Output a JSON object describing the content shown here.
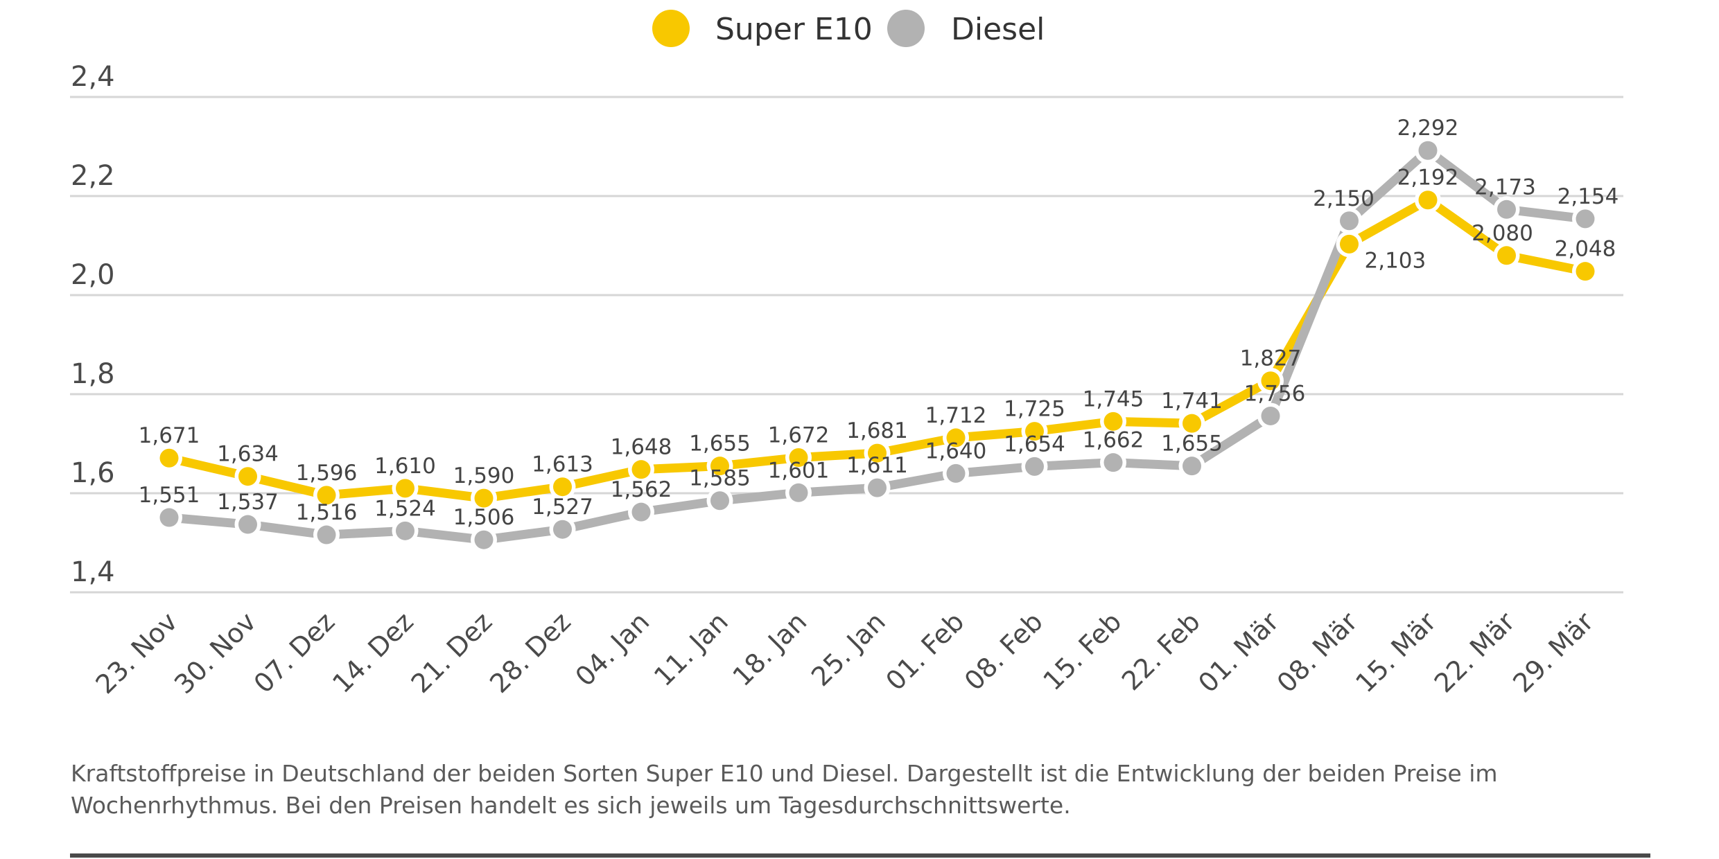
{
  "chart_data": {
    "type": "line",
    "title": "",
    "xlabel": "",
    "ylabel": "",
    "ylim": [
      1.4,
      2.4
    ],
    "yticks": [
      {
        "value": 1.4,
        "label": "1,4"
      },
      {
        "value": 1.6,
        "label": "1,6"
      },
      {
        "value": 1.8,
        "label": "1,8"
      },
      {
        "value": 2.0,
        "label": "2,0"
      },
      {
        "value": 2.2,
        "label": "2,2"
      },
      {
        "value": 2.4,
        "label": "2,4"
      }
    ],
    "grid": true,
    "legend_position": "top-center",
    "categories": [
      "23. Nov",
      "30. Nov",
      "07. Dez",
      "14. Dez",
      "21. Dez",
      "28. Dez",
      "04. Jan",
      "11. Jan",
      "18. Jan",
      "25. Jan",
      "01. Feb",
      "08. Feb",
      "15. Feb",
      "22. Feb",
      "01. Mär",
      "08. Mär",
      "15. Mär",
      "22. Mär",
      "29. Mär"
    ],
    "series": [
      {
        "name": "Super E10",
        "color": "#F8C800",
        "values": [
          1.671,
          1.634,
          1.596,
          1.61,
          1.59,
          1.613,
          1.648,
          1.655,
          1.672,
          1.681,
          1.712,
          1.725,
          1.745,
          1.741,
          1.827,
          2.103,
          2.192,
          2.08,
          2.048
        ],
        "labels": [
          "1,671",
          "1,634",
          "1,596",
          "1,610",
          "1,590",
          "1,613",
          "1,648",
          "1,655",
          "1,672",
          "1,681",
          "1,712",
          "1,725",
          "1,745",
          "1,741",
          "1,827",
          "2,103",
          "2,192",
          "2,080",
          "2,048"
        ]
      },
      {
        "name": "Diesel",
        "color": "#B2B2B2",
        "values": [
          1.551,
          1.537,
          1.516,
          1.524,
          1.506,
          1.527,
          1.562,
          1.585,
          1.601,
          1.611,
          1.64,
          1.654,
          1.662,
          1.655,
          1.756,
          2.15,
          2.292,
          2.173,
          2.154
        ],
        "labels": [
          "1,551",
          "1,537",
          "1,516",
          "1,524",
          "1,506",
          "1,527",
          "1,562",
          "1,585",
          "1,601",
          "1,611",
          "1,640",
          "1,654",
          "1,662",
          "1,655",
          "1,756",
          "2,150",
          "2,292",
          "2,173",
          "2,154"
        ]
      }
    ]
  },
  "caption": {
    "line1": "Kraftstoffpreise in Deutschland der beiden Sorten Super E10 und Diesel. Dargestellt ist die Entwicklung der beiden Preise im",
    "line2": "Wochenrhythmus. Bei den Preisen handelt es sich jeweils um Tagesdurchschnittswerte."
  },
  "colors": {
    "text": "#444444",
    "grid": "#D6D6D6",
    "rule": "#4A4A4A"
  }
}
